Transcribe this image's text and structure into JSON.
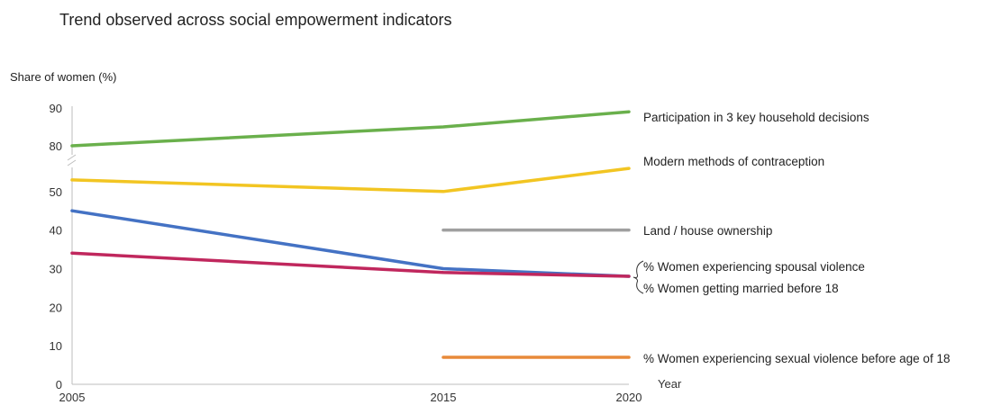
{
  "chart_data": {
    "type": "line",
    "title": "Trend observed across social empowerment indicators",
    "ylabel": "Share of women (%)",
    "xlabel": "Year",
    "ylim": [
      0,
      90
    ],
    "y_axis_break": [
      55,
      78
    ],
    "y_ticks": [
      "0",
      "10",
      "20",
      "30",
      "40",
      "50",
      "80",
      "90"
    ],
    "x_ticks": [
      "2005",
      "2015",
      "2020"
    ],
    "grid": false,
    "legend_placement": "right, inline labels at line ends",
    "series": [
      {
        "name": "Participation in 3 key household decisions",
        "color": "#6ab04c",
        "points": [
          {
            "x": 2005,
            "y": 80
          },
          {
            "x": 2015,
            "y": 85
          },
          {
            "x": 2020,
            "y": 89
          }
        ]
      },
      {
        "name": "Modern methods of contraception",
        "color": "#f2c522",
        "points": [
          {
            "x": 2005,
            "y": 53
          },
          {
            "x": 2015,
            "y": 50
          },
          {
            "x": 2020,
            "y": 56
          }
        ]
      },
      {
        "name": "Land / house ownership",
        "color": "#a0a0a0",
        "points": [
          {
            "x": 2015,
            "y": 40
          },
          {
            "x": 2020,
            "y": 40
          }
        ]
      },
      {
        "name": "% Women experiencing spousal violence",
        "color": "#4472c4",
        "points": [
          {
            "x": 2005,
            "y": 45
          },
          {
            "x": 2015,
            "y": 30
          },
          {
            "x": 2020,
            "y": 28
          }
        ]
      },
      {
        "name": "% Women getting married before 18",
        "color": "#c0275d",
        "points": [
          {
            "x": 2005,
            "y": 34
          },
          {
            "x": 2015,
            "y": 29
          },
          {
            "x": 2020,
            "y": 28
          }
        ]
      },
      {
        "name": "% Women experiencing sexual violence before age of 18",
        "color": "#e88a3a",
        "points": [
          {
            "x": 2015,
            "y": 7
          },
          {
            "x": 2020,
            "y": 7
          }
        ]
      }
    ]
  }
}
